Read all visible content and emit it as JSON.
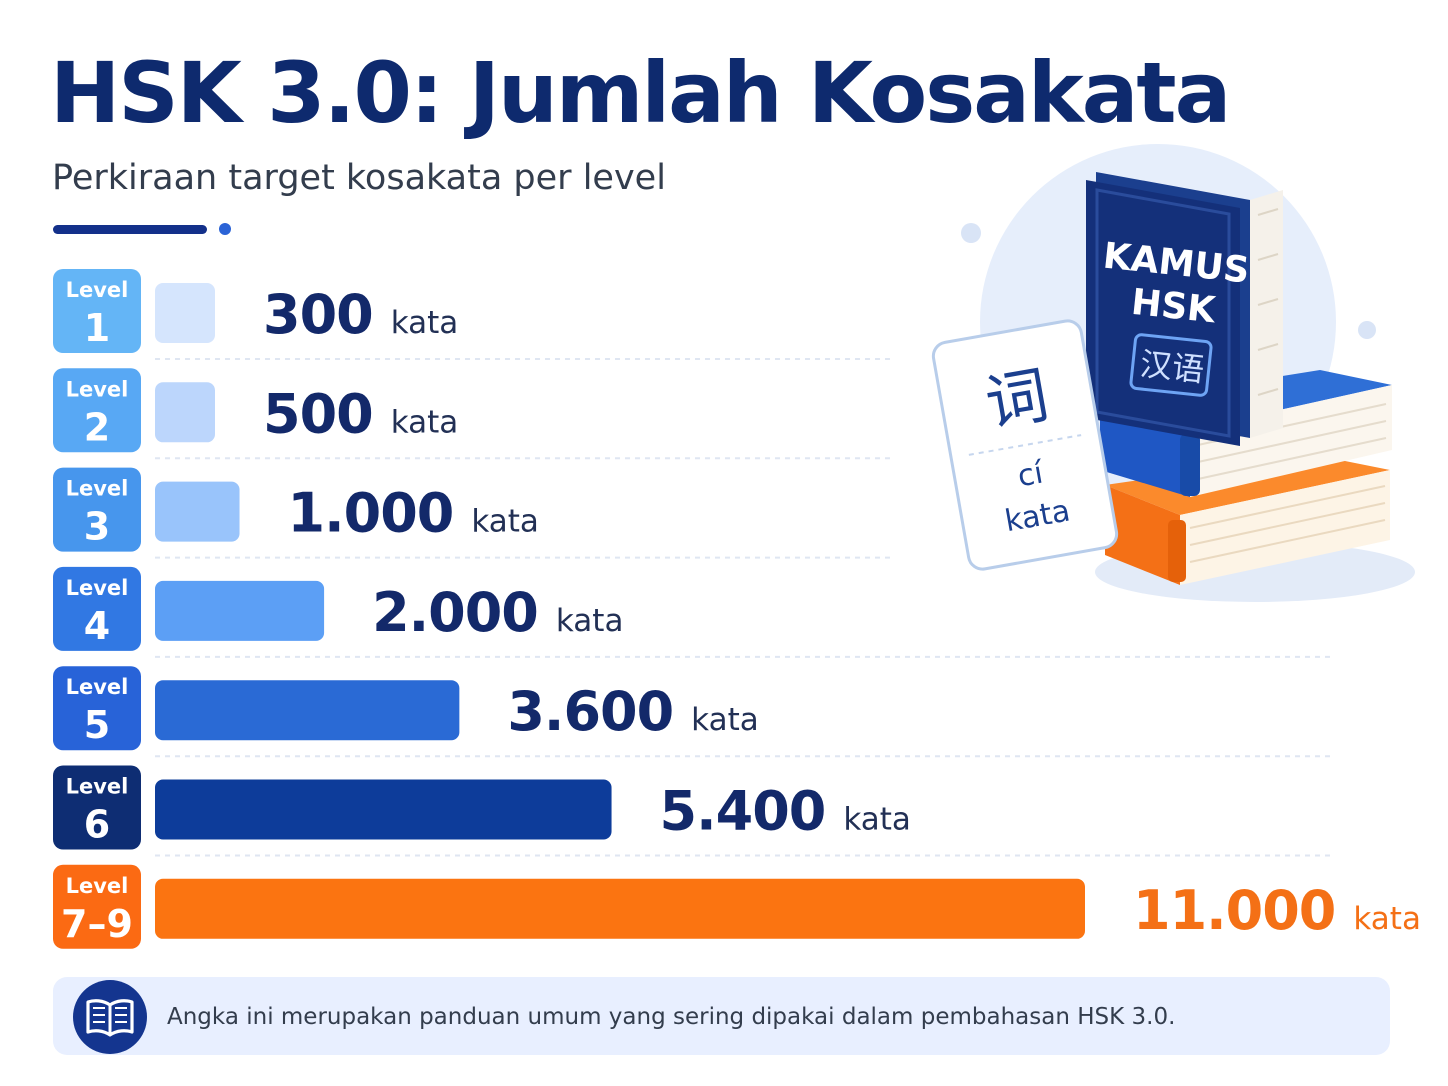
{
  "header": {
    "title": "HSK 3.0: Jumlah Kosakata",
    "subtitle": "Perkiraan target kosakata per level"
  },
  "chart_data": {
    "type": "bar",
    "orientation": "horizontal",
    "badge_word": "Level",
    "unit": "kata",
    "categories": [
      "1",
      "2",
      "3",
      "4",
      "5",
      "6",
      "7–9"
    ],
    "values": [
      300,
      500,
      1000,
      2000,
      3600,
      5400,
      11000
    ],
    "value_labels": [
      "300",
      "500",
      "1.000",
      "2.000",
      "3.600",
      "5.400",
      "11.000"
    ],
    "colors": [
      "#d5e5fd",
      "#bcd6fc",
      "#99c4fb",
      "#5c9ff5",
      "#2a6ad5",
      "#0d3c9a",
      "#fb7411"
    ],
    "badge_colors": [
      "#64b5f6",
      "#58a8f4",
      "#4796ed",
      "#3178e3",
      "#2863d8",
      "#0e2d73",
      "#fb6a13"
    ],
    "number_colors": [
      "#13296a",
      "#13296a",
      "#13296a",
      "#13296a",
      "#13296a",
      "#13296a",
      "#f47016"
    ],
    "unit_colors": [
      "#223055",
      "#223055",
      "#223055",
      "#223055",
      "#223055",
      "#223055",
      "#f47016"
    ],
    "grid": false,
    "legend": "none"
  },
  "illustration": {
    "book_title_line1": "KAMUS",
    "book_title_line2": "HSK",
    "book_hanzi": "汉语",
    "card_hanzi": "词",
    "card_pinyin": "cí",
    "card_meaning": "kata"
  },
  "footer": {
    "note": "Angka ini merupakan panduan umum yang sering dipakai dalam pembahasan HSK 3.0.",
    "icon": "book-icon"
  }
}
